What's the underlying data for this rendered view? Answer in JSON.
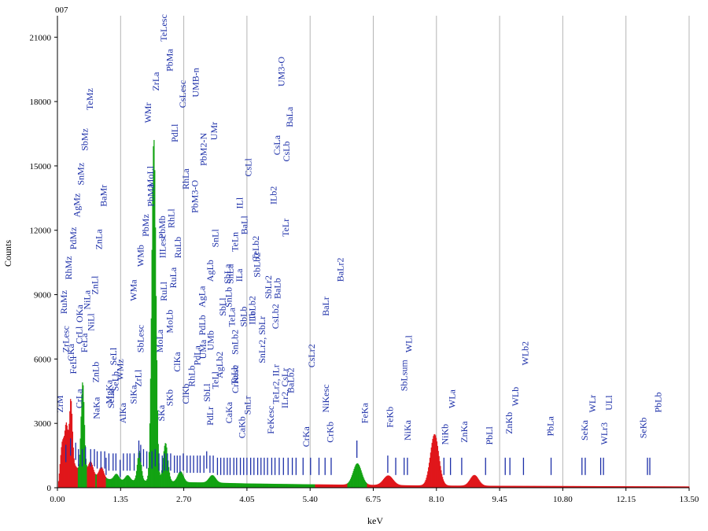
{
  "corner_label": "007",
  "chart_data": {
    "type": "line",
    "title": "",
    "xlabel": "keV",
    "ylabel": "Counts",
    "xlim": [
      0,
      13.5
    ],
    "ylim": [
      0,
      22000
    ],
    "grid": true,
    "x_ticks": [
      0,
      1.35,
      2.7,
      4.05,
      5.4,
      6.75,
      8.1,
      9.45,
      10.8,
      12.15,
      13.5
    ],
    "x_tick_labels": [
      "0.00",
      "1.35",
      "2.70",
      "4.05",
      "5.40",
      "6.75",
      "8.10",
      "9.45",
      "10.80",
      "12.15",
      "13.50"
    ],
    "y_ticks": [
      0,
      3000,
      6000,
      9000,
      12000,
      15000,
      18000,
      21000
    ],
    "y_tick_labels": [
      "0",
      "3000",
      "6000",
      "9000",
      "12000",
      "15000",
      "18000",
      "21000"
    ],
    "colors": {
      "red": "#e0161b",
      "green": "#13a313",
      "marker": "#1c2fa8",
      "grid": "#b4b4b4"
    },
    "spectrum": {
      "baseline": [
        [
          0,
          0
        ],
        [
          0.05,
          900
        ],
        [
          0.12,
          1400
        ],
        [
          0.2,
          1300
        ],
        [
          0.27,
          1900
        ],
        [
          0.35,
          1100
        ],
        [
          0.45,
          800
        ],
        [
          0.6,
          700
        ],
        [
          0.8,
          550
        ],
        [
          1.0,
          420
        ],
        [
          1.4,
          340
        ],
        [
          1.8,
          320
        ],
        [
          2.2,
          300
        ],
        [
          2.7,
          260
        ],
        [
          3.3,
          240
        ],
        [
          4.05,
          200
        ],
        [
          5.4,
          160
        ],
        [
          6.75,
          130
        ],
        [
          8.1,
          100
        ],
        [
          9.45,
          90
        ],
        [
          10.8,
          80
        ],
        [
          12.15,
          70
        ],
        [
          13.5,
          60
        ]
      ],
      "peaks": [
        {
          "e": 0.09,
          "h": 900,
          "w": 0.03,
          "color": "red"
        },
        {
          "e": 0.18,
          "h": 1700,
          "w": 0.035,
          "color": "red"
        },
        {
          "e": 0.28,
          "h": 2300,
          "w": 0.03,
          "color": "red"
        },
        {
          "e": 0.53,
          "h": 4200,
          "w": 0.035,
          "color": "green"
        },
        {
          "e": 0.7,
          "h": 600,
          "w": 0.05,
          "color": "red"
        },
        {
          "e": 0.93,
          "h": 500,
          "w": 0.05,
          "color": "red"
        },
        {
          "e": 1.25,
          "h": 280,
          "w": 0.05,
          "color": "green"
        },
        {
          "e": 1.49,
          "h": 250,
          "w": 0.05,
          "color": "green"
        },
        {
          "e": 1.74,
          "h": 1400,
          "w": 0.04,
          "color": "green"
        },
        {
          "e": 2.05,
          "h": 16000,
          "w": 0.045,
          "color": "green"
        },
        {
          "e": 2.3,
          "h": 1800,
          "w": 0.05,
          "color": "green"
        },
        {
          "e": 2.62,
          "h": 500,
          "w": 0.06,
          "color": "green"
        },
        {
          "e": 3.3,
          "h": 350,
          "w": 0.07,
          "color": "green"
        },
        {
          "e": 6.4,
          "h": 1000,
          "w": 0.09,
          "color": "green"
        },
        {
          "e": 7.06,
          "h": 450,
          "w": 0.1,
          "color": "red"
        },
        {
          "e": 8.05,
          "h": 2400,
          "w": 0.09,
          "color": "red"
        },
        {
          "e": 8.9,
          "h": 500,
          "w": 0.09,
          "color": "red"
        }
      ]
    },
    "markers": [
      {
        "e": 0.18,
        "top": 2000
      },
      {
        "e": 0.28,
        "top": 2300
      },
      {
        "e": 0.39,
        "top": 2100
      },
      {
        "e": 0.45,
        "top": 1800
      },
      {
        "e": 0.53,
        "top": 1800
      },
      {
        "e": 0.6,
        "top": 1900
      },
      {
        "e": 0.71,
        "top": 1800
      },
      {
        "e": 0.79,
        "top": 1800
      },
      {
        "e": 0.85,
        "top": 1700
      },
      {
        "e": 0.93,
        "top": 1700
      },
      {
        "e": 1.01,
        "top": 1700
      },
      {
        "e": 1.04,
        "top": 1400
      },
      {
        "e": 1.1,
        "top": 1600
      },
      {
        "e": 1.19,
        "top": 1600
      },
      {
        "e": 1.25,
        "top": 1600
      },
      {
        "e": 1.34,
        "top": 1300
      },
      {
        "e": 1.41,
        "top": 1600
      },
      {
        "e": 1.49,
        "top": 1600
      },
      {
        "e": 1.55,
        "top": 1600
      },
      {
        "e": 1.64,
        "top": 1600
      },
      {
        "e": 1.74,
        "top": 2200
      },
      {
        "e": 1.78,
        "top": 2000
      },
      {
        "e": 1.84,
        "top": 1800
      },
      {
        "e": 1.91,
        "top": 1700
      },
      {
        "e": 2.02,
        "top": 1700
      },
      {
        "e": 2.09,
        "top": 1800
      },
      {
        "e": 2.17,
        "top": 1600
      },
      {
        "e": 2.24,
        "top": 1500
      },
      {
        "e": 2.29,
        "top": 1600
      },
      {
        "e": 2.35,
        "top": 1600
      },
      {
        "e": 2.42,
        "top": 1600
      },
      {
        "e": 2.5,
        "top": 1500
      },
      {
        "e": 2.56,
        "top": 1500
      },
      {
        "e": 2.62,
        "top": 1500
      },
      {
        "e": 2.69,
        "top": 1600
      },
      {
        "e": 2.77,
        "top": 1500
      },
      {
        "e": 2.84,
        "top": 1500
      },
      {
        "e": 2.91,
        "top": 1500
      },
      {
        "e": 2.99,
        "top": 1500
      },
      {
        "e": 3.05,
        "top": 1500
      },
      {
        "e": 3.13,
        "top": 1500
      },
      {
        "e": 3.19,
        "top": 1700
      },
      {
        "e": 3.26,
        "top": 1500
      },
      {
        "e": 3.33,
        "top": 1500
      },
      {
        "e": 3.42,
        "top": 1400
      },
      {
        "e": 3.49,
        "top": 1400
      },
      {
        "e": 3.56,
        "top": 1400
      },
      {
        "e": 3.63,
        "top": 1400
      },
      {
        "e": 3.69,
        "top": 1400
      },
      {
        "e": 3.77,
        "top": 1400
      },
      {
        "e": 3.83,
        "top": 1400
      },
      {
        "e": 3.91,
        "top": 1400
      },
      {
        "e": 3.98,
        "top": 1400
      },
      {
        "e": 4.05,
        "top": 1400
      },
      {
        "e": 4.13,
        "top": 1400
      },
      {
        "e": 4.2,
        "top": 1400
      },
      {
        "e": 4.28,
        "top": 1400
      },
      {
        "e": 4.35,
        "top": 1400
      },
      {
        "e": 4.42,
        "top": 1400
      },
      {
        "e": 4.49,
        "top": 1400
      },
      {
        "e": 4.58,
        "top": 1400
      },
      {
        "e": 4.65,
        "top": 1400
      },
      {
        "e": 4.74,
        "top": 1400
      },
      {
        "e": 4.83,
        "top": 1400
      },
      {
        "e": 4.93,
        "top": 1400
      },
      {
        "e": 5.02,
        "top": 1400
      },
      {
        "e": 5.1,
        "top": 1400
      },
      {
        "e": 5.25,
        "top": 1400
      },
      {
        "e": 5.41,
        "top": 1400
      },
      {
        "e": 5.59,
        "top": 1400
      },
      {
        "e": 5.72,
        "top": 1400
      },
      {
        "e": 5.85,
        "top": 1400
      },
      {
        "e": 6.4,
        "top": 2200
      },
      {
        "e": 7.06,
        "top": 1500
      },
      {
        "e": 7.23,
        "top": 1400
      },
      {
        "e": 7.41,
        "top": 1400
      },
      {
        "e": 7.48,
        "top": 1400
      },
      {
        "e": 8.26,
        "top": 1400
      },
      {
        "e": 8.4,
        "top": 1400
      },
      {
        "e": 8.64,
        "top": 1400
      },
      {
        "e": 9.15,
        "top": 1400
      },
      {
        "e": 9.57,
        "top": 1400
      },
      {
        "e": 9.67,
        "top": 1400
      },
      {
        "e": 9.96,
        "top": 1400
      },
      {
        "e": 10.55,
        "top": 1400
      },
      {
        "e": 11.21,
        "top": 1400
      },
      {
        "e": 11.28,
        "top": 1400
      },
      {
        "e": 11.61,
        "top": 1400
      },
      {
        "e": 11.67,
        "top": 1400
      },
      {
        "e": 12.61,
        "top": 1400
      },
      {
        "e": 12.66,
        "top": 1400
      }
    ],
    "annotations": [
      {
        "text": "ZrM",
        "e": 0.12,
        "y": 3500
      },
      {
        "text": "ZrLesc",
        "e": 0.24,
        "y": 6300
      },
      {
        "text": "RuMz",
        "e": 0.2,
        "y": 8100
      },
      {
        "text": "RhMz",
        "e": 0.3,
        "y": 9700
      },
      {
        "text": "PdMz",
        "e": 0.4,
        "y": 11100
      },
      {
        "text": "AgMz",
        "e": 0.48,
        "y": 12600
      },
      {
        "text": "SnMz",
        "e": 0.56,
        "y": 14100
      },
      {
        "text": "SbMz",
        "e": 0.65,
        "y": 15700
      },
      {
        "text": "TeMz",
        "e": 0.76,
        "y": 17600
      },
      {
        "text": "CKa",
        "e": 0.35,
        "y": 5900
      },
      {
        "text": "FeLl",
        "e": 0.4,
        "y": 5300
      },
      {
        "text": "OKa",
        "e": 0.54,
        "y": 7700
      },
      {
        "text": "CrLl",
        "e": 0.53,
        "y": 6700
      },
      {
        "text": "CrLa",
        "e": 0.53,
        "y": 3700
      },
      {
        "text": "FeLa",
        "e": 0.64,
        "y": 6300
      },
      {
        "text": "NiLa",
        "e": 0.7,
        "y": 8300
      },
      {
        "text": "NiLl",
        "e": 0.78,
        "y": 7300
      },
      {
        "text": "ZnLl",
        "e": 0.87,
        "y": 9000
      },
      {
        "text": "ZnLa",
        "e": 0.95,
        "y": 11100
      },
      {
        "text": "BaMr",
        "e": 1.05,
        "y": 13100
      },
      {
        "text": "ZnLb",
        "e": 0.88,
        "y": 4900
      },
      {
        "text": "NaKa",
        "e": 0.9,
        "y": 3200
      },
      {
        "text": "MgKa",
        "e": 1.17,
        "y": 3900
      },
      {
        "text": "SeLa",
        "e": 1.21,
        "y": 3700
      },
      {
        "text": "SeLl",
        "e": 1.26,
        "y": 5700
      },
      {
        "text": "SeLb",
        "e": 1.3,
        "y": 4500
      },
      {
        "text": "WMz",
        "e": 1.4,
        "y": 5000
      },
      {
        "text": "AlKa",
        "e": 1.46,
        "y": 3000
      },
      {
        "text": "SiKa",
        "e": 1.69,
        "y": 3900
      },
      {
        "text": "ZrLl",
        "e": 1.79,
        "y": 4700
      },
      {
        "text": "SbLesc",
        "e": 1.84,
        "y": 6300
      },
      {
        "text": "WMa",
        "e": 1.69,
        "y": 8700
      },
      {
        "text": "WMb",
        "e": 1.84,
        "y": 10300
      },
      {
        "text": "PbMz",
        "e": 1.95,
        "y": 11700
      },
      {
        "text": "PbMa",
        "e": 2.06,
        "y": 13100
      },
      {
        "text": "PbMb",
        "e": 2.3,
        "y": 11600
      },
      {
        "text": "MoLl",
        "e": 2.05,
        "y": 14000
      },
      {
        "text": "WMr",
        "e": 2.0,
        "y": 17000
      },
      {
        "text": "ZrLa",
        "e": 2.17,
        "y": 18500
      },
      {
        "text": "TeLesc",
        "e": 2.34,
        "y": 20800
      },
      {
        "text": "PbMa",
        "e": 2.46,
        "y": 19400
      },
      {
        "text": "PdLl",
        "e": 2.57,
        "y": 16100
      },
      {
        "text": "CsLesc",
        "e": 2.74,
        "y": 17700
      },
      {
        "text": "UMB-n",
        "e": 3.02,
        "y": 18200
      },
      {
        "text": "RhLa",
        "e": 2.81,
        "y": 13900
      },
      {
        "text": "PbM2-N",
        "e": 3.19,
        "y": 15000
      },
      {
        "text": "UMr",
        "e": 3.41,
        "y": 16200
      },
      {
        "text": "RhLl",
        "e": 2.5,
        "y": 12100
      },
      {
        "text": "PbM3-O",
        "e": 3.0,
        "y": 12800
      },
      {
        "text": "RuLb",
        "e": 2.64,
        "y": 10700
      },
      {
        "text": "RuLa",
        "e": 2.54,
        "y": 9300
      },
      {
        "text": "RuLl",
        "e": 2.34,
        "y": 8700
      },
      {
        "text": "IILesc",
        "e": 2.31,
        "y": 10700
      },
      {
        "text": "MoLa",
        "e": 2.25,
        "y": 6300
      },
      {
        "text": "SKa",
        "e": 2.29,
        "y": 3100
      },
      {
        "text": "SKb",
        "e": 2.46,
        "y": 3800
      },
      {
        "text": "MoLb",
        "e": 2.46,
        "y": 7200
      },
      {
        "text": "ClKa",
        "e": 2.62,
        "y": 5400
      },
      {
        "text": "ClKb",
        "e": 2.81,
        "y": 3900
      },
      {
        "text": "RhLb",
        "e": 2.93,
        "y": 4700
      },
      {
        "text": "PdLa",
        "e": 3.05,
        "y": 5700
      },
      {
        "text": "PdLb",
        "e": 3.16,
        "y": 7100
      },
      {
        "text": "AgLa",
        "e": 3.15,
        "y": 8400
      },
      {
        "text": "AgLb",
        "e": 3.33,
        "y": 9600
      },
      {
        "text": "SnLl",
        "e": 3.44,
        "y": 11200
      },
      {
        "text": "SbLl",
        "e": 3.6,
        "y": 8000
      },
      {
        "text": "UMb",
        "e": 3.34,
        "y": 6400
      },
      {
        "text": "UMa",
        "e": 3.18,
        "y": 6000
      },
      {
        "text": "SbLl",
        "e": 3.26,
        "y": 4000
      },
      {
        "text": "PdLr",
        "e": 3.33,
        "y": 2900
      },
      {
        "text": "TeLl",
        "e": 3.44,
        "y": 4600
      },
      {
        "text": "AgLb2",
        "e": 3.53,
        "y": 5100
      },
      {
        "text": "SnLb",
        "e": 3.72,
        "y": 8400
      },
      {
        "text": "SnLa",
        "e": 3.76,
        "y": 9500
      },
      {
        "text": "SbLa",
        "e": 3.7,
        "y": 9500
      },
      {
        "text": "TeLn",
        "e": 3.86,
        "y": 11000
      },
      {
        "text": "ILl",
        "e": 3.96,
        "y": 13000
      },
      {
        "text": "CsLl",
        "e": 4.14,
        "y": 14500
      },
      {
        "text": "ILa",
        "e": 3.95,
        "y": 9600
      },
      {
        "text": "BaLl",
        "e": 4.06,
        "y": 11800
      },
      {
        "text": "TeLa",
        "e": 3.79,
        "y": 7500
      },
      {
        "text": "SnLb2",
        "e": 3.86,
        "y": 6200
      },
      {
        "text": "SbLb",
        "e": 4.04,
        "y": 7500
      },
      {
        "text": "TeLb",
        "e": 3.85,
        "y": 4800
      },
      {
        "text": "CaKa",
        "e": 3.73,
        "y": 3000
      },
      {
        "text": "CaKb",
        "e": 4.01,
        "y": 2300
      },
      {
        "text": "CrKesc",
        "e": 3.87,
        "y": 4400
      },
      {
        "text": "SnLr",
        "e": 4.13,
        "y": 3400
      },
      {
        "text": "TeLb2",
        "e": 4.23,
        "y": 7800
      },
      {
        "text": "SbLb2",
        "e": 4.33,
        "y": 9800
      },
      {
        "text": "ILb",
        "e": 4.23,
        "y": 7600
      },
      {
        "text": "SnLr2, SbLr",
        "e": 4.44,
        "y": 5800
      },
      {
        "text": "SbLr2",
        "e": 4.57,
        "y": 8800
      },
      {
        "text": "BaLb",
        "e": 4.77,
        "y": 8800
      },
      {
        "text": "CsLb2",
        "e": 4.72,
        "y": 7400
      },
      {
        "text": "TeLr2, ILr",
        "e": 4.73,
        "y": 3900
      },
      {
        "text": "ILr2, CsLr",
        "e": 4.93,
        "y": 3700
      },
      {
        "text": "BaLb2",
        "e": 5.05,
        "y": 4400
      },
      {
        "text": "FeKesc",
        "e": 4.62,
        "y": 2500
      },
      {
        "text": "CrKa",
        "e": 5.38,
        "y": 1900
      },
      {
        "text": "CrKb",
        "e": 5.89,
        "y": 2100
      },
      {
        "text": "NiKesc",
        "e": 5.8,
        "y": 3500
      },
      {
        "text": "CsLr2",
        "e": 5.5,
        "y": 5600
      },
      {
        "text": "BaLr",
        "e": 5.8,
        "y": 8000
      },
      {
        "text": "BaLr2",
        "e": 6.11,
        "y": 9600
      },
      {
        "text": "TeLr",
        "e": 4.94,
        "y": 11700
      },
      {
        "text": "ILb2",
        "e": 4.68,
        "y": 13200
      },
      {
        "text": "CsLb",
        "e": 4.96,
        "y": 15200
      },
      {
        "text": "CsLa",
        "e": 4.76,
        "y": 15500
      },
      {
        "text": "BaLa",
        "e": 5.03,
        "y": 16800
      },
      {
        "text": "UM3-O",
        "e": 4.85,
        "y": 18700
      },
      {
        "text": "TeLb2",
        "e": 4.3,
        "y": 10600
      },
      {
        "text": "FeKa",
        "e": 6.63,
        "y": 3000
      },
      {
        "text": "FeKb",
        "e": 7.17,
        "y": 2800
      },
      {
        "text": "SbLsum",
        "e": 7.47,
        "y": 4500
      },
      {
        "text": "NiKa",
        "e": 7.55,
        "y": 2200
      },
      {
        "text": "WLl",
        "e": 7.57,
        "y": 6300
      },
      {
        "text": "NiKb",
        "e": 8.35,
        "y": 2000
      },
      {
        "text": "WLa",
        "e": 8.5,
        "y": 3700
      },
      {
        "text": "ZnKa",
        "e": 8.76,
        "y": 2100
      },
      {
        "text": "PbLl",
        "e": 9.3,
        "y": 2000
      },
      {
        "text": "ZnKb",
        "e": 9.72,
        "y": 2500
      },
      {
        "text": "WLb",
        "e": 9.85,
        "y": 3800
      },
      {
        "text": "WLb2",
        "e": 10.06,
        "y": 5700
      },
      {
        "text": "PbLa",
        "e": 10.6,
        "y": 2400
      },
      {
        "text": "SeKa",
        "e": 11.33,
        "y": 2200
      },
      {
        "text": "WLr",
        "e": 11.5,
        "y": 3500
      },
      {
        "text": "WLr3",
        "e": 11.75,
        "y": 2000
      },
      {
        "text": "ULl",
        "e": 11.85,
        "y": 3600
      },
      {
        "text": "SeKb",
        "e": 12.58,
        "y": 2300
      },
      {
        "text": "PbLb",
        "e": 12.9,
        "y": 3500
      }
    ]
  }
}
